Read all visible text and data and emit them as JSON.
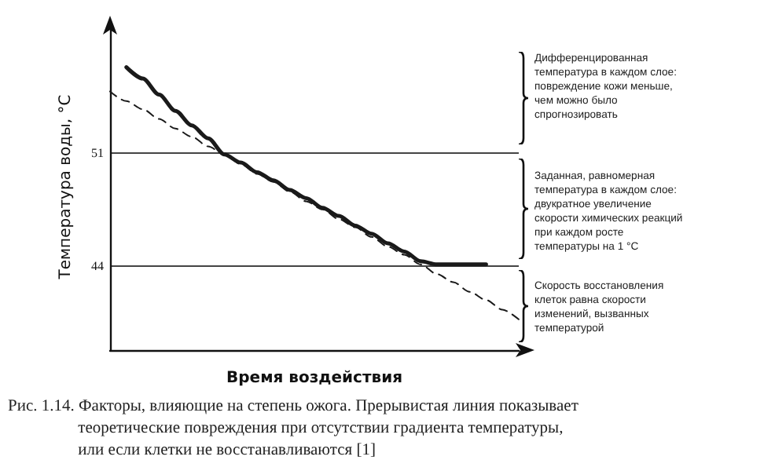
{
  "chart_data": {
    "type": "line",
    "xlabel": "Время воздействия",
    "ylabel": "Температура воды, °C",
    "categories": [
      null,
      null,
      null,
      null,
      null,
      null,
      null,
      null,
      null,
      null,
      null,
      null,
      null,
      null,
      null,
      null,
      null,
      null,
      null,
      null,
      null,
      null,
      null,
      null,
      null,
      null
    ],
    "series": [
      {
        "color": "#1a1a1a",
        "line_style": "solid",
        "values": [
          null,
          56.3,
          55.6,
          54.6,
          53.6,
          52.7,
          51.9,
          50.9,
          50.4,
          49.8,
          49.3,
          48.7,
          48.2,
          47.6,
          47.1,
          46.5,
          46.0,
          45.4,
          44.9,
          44.3,
          44.1,
          44.1,
          44.1,
          44.1,
          null,
          null
        ]
      },
      {
        "color": "#1a1a1a",
        "line_style": "dashed",
        "values": [
          54.8,
          54.2,
          53.7,
          53.1,
          52.5,
          52.0,
          51.4,
          50.9,
          50.3,
          49.7,
          49.2,
          48.6,
          48.0,
          47.5,
          46.9,
          46.4,
          45.8,
          45.2,
          44.7,
          44.1,
          43.5,
          43.0,
          42.4,
          41.9,
          41.3,
          40.7
        ]
      }
    ],
    "ylim": [
      38.8,
      59
    ],
    "yticks": [
      44,
      51
    ],
    "grid": "y",
    "marker": "none",
    "annotations": [
      "Дифференцированная\nтемпература в каждом слое:\nповреждение кожи меньше,\nчем можно было\nспрогнозировать",
      "Заданная, равномерная\nтемпература в каждом слое:\nдвукратное увеличение\nскорости химических реакций\nпри каждом росте\nтемпературы на 1 °C",
      "Скорость восстановления\nклеток равна скорости\nизменений, вызванных\nтемпературой",
      "Рис. 1.14. Факторы, влияющие на степень ожога. Прерывистая линия показывает\n                 теоретические повреждения при отсутствии градиента температуры,\n                 или если клетки не восстанавливаются [1]"
    ]
  }
}
